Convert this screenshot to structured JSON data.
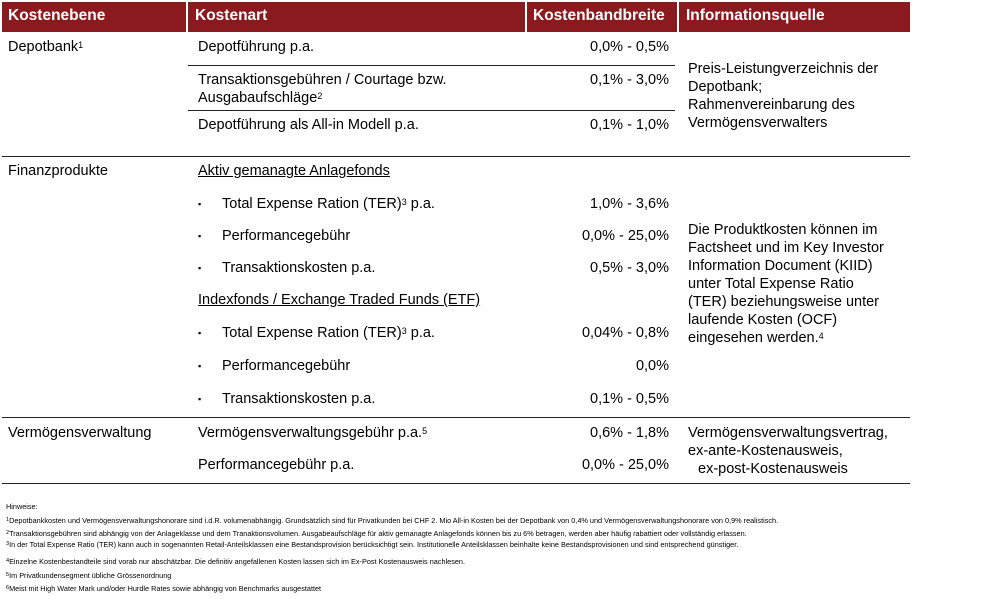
{
  "header": {
    "col1": "Kostenebene",
    "col2": "Kostenart",
    "col3": "Kostenbandbreite",
    "col4": "Informationsquelle"
  },
  "depotbank": {
    "label": "Depotbank",
    "sup": "1",
    "rows": [
      {
        "kostenart": "Depotführung p.a.",
        "range": "0,0% - 0,5%"
      },
      {
        "kostenart_line1": "Transaktionsgebühren / Courtage bzw.",
        "kostenart_line2": "Ausgabaufschläge",
        "sup": "2",
        "range": "0,1% - 3,0%"
      },
      {
        "kostenart": "Depotführung als All-in Modell p.a.",
        "range": "0,1% - 1,0%"
      }
    ],
    "info": [
      "Preis-Leistungverzeichnis der",
      "Depotbank;",
      "Rahmenvereinbarung des",
      "Vermögensverwalters"
    ]
  },
  "finanzprodukte": {
    "label": "Finanzprodukte",
    "aktiv_heading": "Aktiv gemanagte Anlagefonds",
    "aktiv_rows": [
      {
        "label": "Total Expense  Ration (TER)",
        "sup": "3",
        "suffix": " p.a.",
        "range": "1,0% - 3,6%"
      },
      {
        "label": "Performancegebühr",
        "range": "0,0% - 25,0%"
      },
      {
        "label": "Transaktionskosten p.a.",
        "range": "0,5% - 3,0%"
      }
    ],
    "index_heading": "Indexfonds  / Exchange Traded Funds (ETF)",
    "index_rows": [
      {
        "label": "Total Expense  Ration (TER)",
        "sup": "3",
        "suffix": " p.a.",
        "range": "0,04% - 0,8%"
      },
      {
        "label": "Performancegebühr",
        "range": "0,0%"
      },
      {
        "label": "Transaktionskosten p.a.",
        "range": "0,1% - 0,5%"
      }
    ],
    "bullet": "▪",
    "info": [
      "Die Produktkosten können im",
      "Factsheet und im Key Investor",
      "Information Document (KIID)",
      "unter Total Expense Ratio",
      "(TER) beziehungsweise unter",
      "laufende Kosten (OCF)",
      "eingesehen werden."
    ],
    "info_sup": "4"
  },
  "vermoegen": {
    "label": "Vermögensverwaltung",
    "rows": [
      {
        "kostenart": "Vermögensverwaltungsgebühr p.a.",
        "sup": "5",
        "range": "0,6% - 1,8%"
      },
      {
        "kostenart": "Performancegebühr p.a.",
        "range": "0,0% - 25,0%"
      }
    ],
    "info": [
      "Vermögensverwaltungsvertrag,",
      "ex-ante-Kostenausweis,",
      "ex-post-Kostenausweis"
    ]
  },
  "footnotes": {
    "title": "Hinweise:",
    "items": [
      {
        "n": "1",
        "text": "Depotbankkosten  und  Vermögensverwaltungshonorare  sind  i.d.R.  volumenabhängig.  Grundsätzlich  sind für Privatkunden  bei CHF 2. Mio All-in Kosten bei der Depotbank von 0,4% und Vermögensverwaltungshonorare  von 0,9% realistisch."
      },
      {
        "n": "2",
        "text": "Transaktionsgebühren  sind abhängig von der Anlageklasse  und dem Tranaktionsvolumen.  Ausgabeaufschläge  für aktiv gemanagte  Anlagefonds  können bis zu 6% betragen, werden aber häufig rabattiert oder vollständig  erlassen."
      },
      {
        "n": "3",
        "text": "In der Total Expense Ratio (TER) kann auch in sogenannten  Retail-Anteilsklassen  eine Bestandsprovision  berücksichtigt sein.  Institutionelle  Anteilsklassen  beinhalte  keine Bestandsprovisionen  und sind entsprechend  günstiger."
      },
      {
        "n": "4",
        "text": "Einzelne  Kostenbestandteile  sind vorab  nur abschätzbar.  Die definitiv angefallenen  Kosten  lassen sich im Ex-Post  Kostenausweis  nachlesen."
      },
      {
        "n": "5",
        "text": "Im Privatkundensegment  übliche Grössenordnung"
      },
      {
        "n": "6",
        "text": "Meist mit High Water Mark und/oder Hurdle Rates sowie abhängig von Benchmarks ausgestattet"
      }
    ]
  }
}
